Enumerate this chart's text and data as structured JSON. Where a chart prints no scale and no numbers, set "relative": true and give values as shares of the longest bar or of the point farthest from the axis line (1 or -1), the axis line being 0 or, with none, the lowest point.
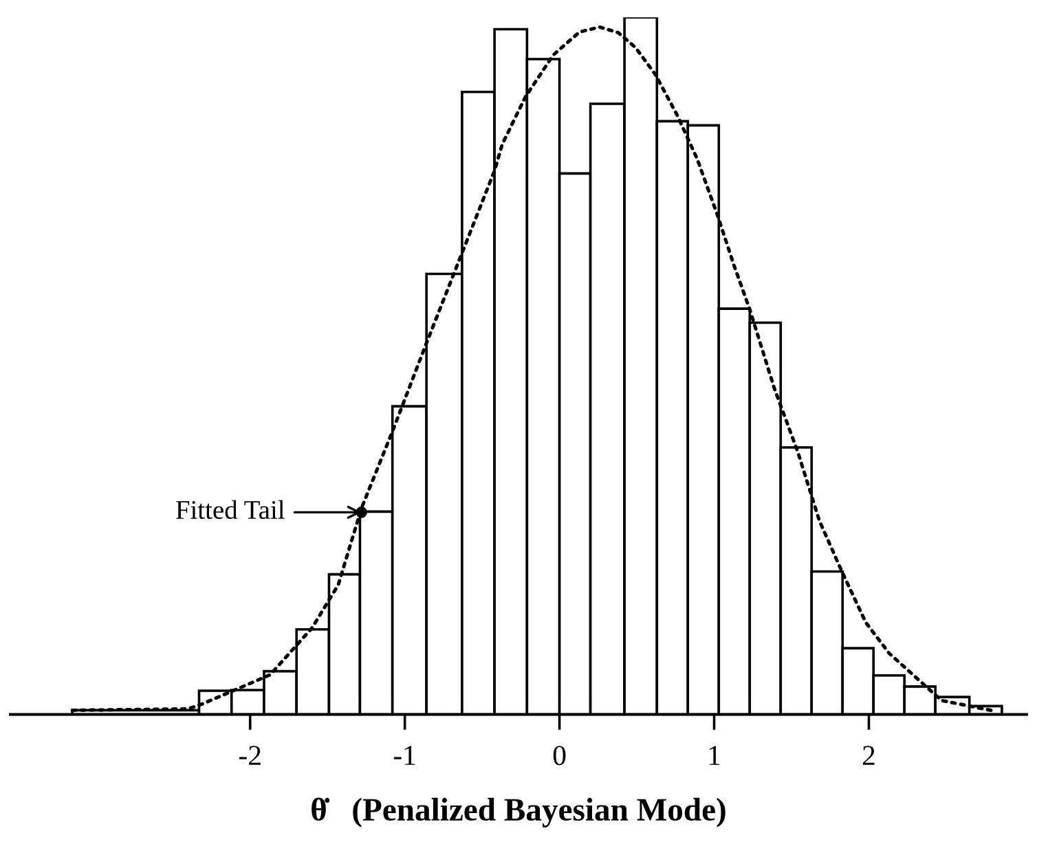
{
  "chart_data": {
    "type": "histogram",
    "relative": true,
    "xlabel": "θ̇   (Penalized Bayesian Mode)",
    "xlim": [
      -3.55,
      3.02
    ],
    "xticks": [
      -2,
      -1,
      0,
      1,
      2
    ],
    "grid": false,
    "annotations": [
      {
        "text": "Fitted Tail",
        "x": -1.28,
        "y": 0.29
      }
    ],
    "series": [
      {
        "color": "#000000",
        "bins": [
          -3.15,
          -2.33,
          -2.12,
          -1.91,
          -1.7,
          -1.49,
          -1.29,
          -1.08,
          -0.86,
          -0.63,
          -0.42,
          -0.21,
          0.0,
          0.2,
          0.42,
          0.63,
          0.83,
          1.03,
          1.23,
          1.43,
          1.63,
          1.83,
          2.03,
          2.23,
          2.43,
          2.65,
          2.86
        ],
        "values": [
          0.006,
          0.034,
          0.035,
          0.062,
          0.122,
          0.201,
          0.291,
          0.442,
          0.632,
          0.893,
          0.983,
          0.94,
          0.776,
          0.876,
          1.0,
          0.851,
          0.845,
          0.582,
          0.562,
          0.383,
          0.205,
          0.095,
          0.056,
          0.04,
          0.025,
          0.012
        ]
      },
      {
        "type": "line",
        "color": "#000000",
        "line_style": "dotted",
        "x": [
          -3.15,
          -2.4,
          -2.31,
          -1.87,
          -1.6,
          -1.43,
          -1.28,
          -1.08,
          -0.87,
          -0.63,
          -0.42,
          -0.37,
          -0.22,
          -0.04,
          0.13,
          0.26,
          0.38,
          0.49,
          0.62,
          0.76,
          0.89,
          1.02,
          1.13,
          1.23,
          1.39,
          1.54,
          1.68,
          1.83,
          1.98,
          2.13,
          2.47,
          2.81
        ],
        "values": [
          0.006,
          0.008,
          0.015,
          0.057,
          0.124,
          0.186,
          0.296,
          0.406,
          0.527,
          0.662,
          0.78,
          0.818,
          0.886,
          0.946,
          0.979,
          0.986,
          0.978,
          0.957,
          0.918,
          0.86,
          0.797,
          0.717,
          0.643,
          0.581,
          0.467,
          0.377,
          0.278,
          0.203,
          0.132,
          0.088,
          0.02,
          0.005
        ]
      }
    ]
  }
}
